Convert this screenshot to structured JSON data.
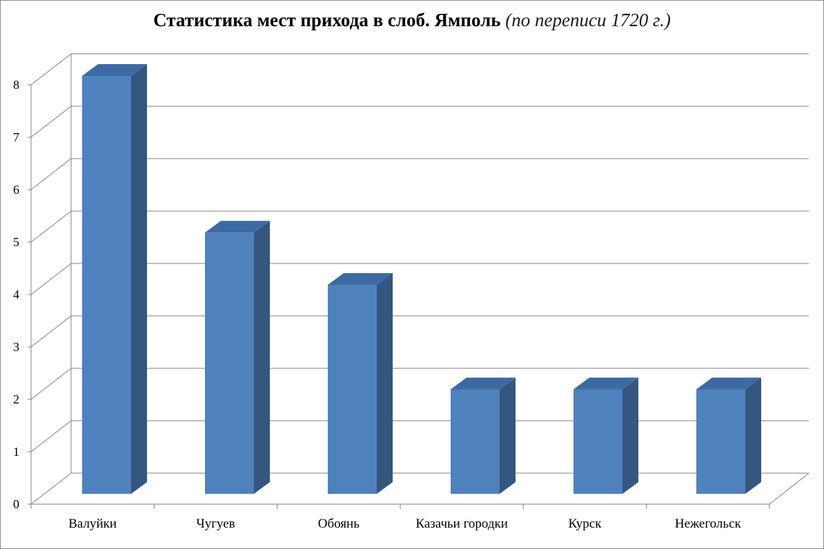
{
  "title": "Статистика мест прихода в слоб. Ямполь",
  "subtitle": "(по переписи 1720 г.)",
  "colors": {
    "bar_front": "#4f81bd",
    "bar_top": "#3d6aa3",
    "bar_side": "#34567f",
    "grid": "#7f7f7f"
  },
  "chart_data": {
    "type": "bar",
    "title": "Статистика мест прихода в слоб. Ямполь (по переписи 1720 г.)",
    "categories": [
      "Валуйки",
      "Чугуев",
      "Обоянь",
      "Казачьи городки",
      "Курск",
      "Нежегольск"
    ],
    "values": [
      8,
      5,
      4,
      2,
      2,
      2
    ],
    "ylim": [
      0,
      8
    ],
    "yticks": [
      "0",
      "1",
      "2",
      "3",
      "4",
      "5",
      "6",
      "7",
      "8"
    ],
    "grid": true,
    "legend": "none",
    "style": "3d-column"
  }
}
